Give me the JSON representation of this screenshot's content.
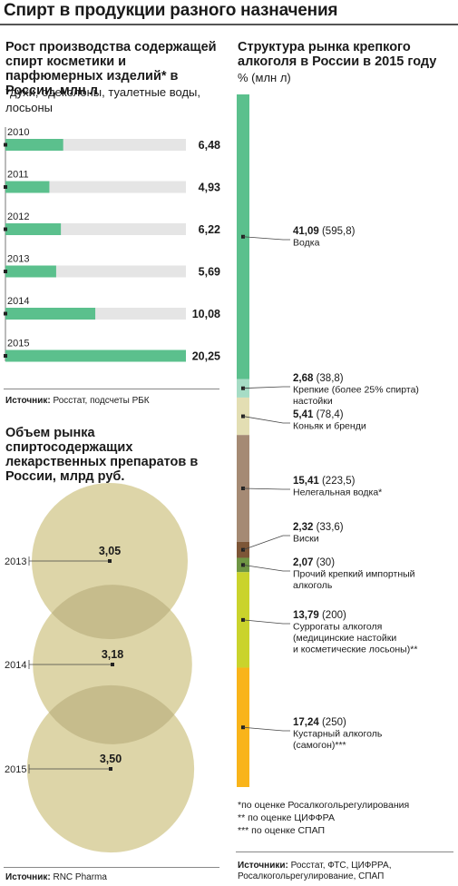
{
  "title": "Спирт в продукции разного назначения",
  "cosmetics": {
    "heading": "Рост производства содержащей спирт косметики и парфюмерных изделий* в России, млн л",
    "footnote": "*духи, одеколоны, туалетные воды, лосьоны",
    "source_label": "Источник:",
    "source_text": "Росстат, подсчеты РБК"
  },
  "medicines": {
    "heading": "Объем рынка спиртосодержащих лекарственных препаратов в России, млрд руб.",
    "source_label": "Источник:",
    "source_text": "RNC Pharma"
  },
  "market": {
    "heading": "Структура рынка крепкого алкоголя в России в 2015 году",
    "unit": "% (млн л)",
    "notes": [
      "*по оценке Росалкогольрегулирования",
      "** по оценке ЦИФФРА",
      "*** по оценке СПАП"
    ],
    "source_label": "Источники:",
    "source_text": "Росстат, ФТС, ЦИФРРА,",
    "source_text2": "Росалкогольрегулирование, СПАП"
  },
  "chart_data": [
    {
      "type": "bar",
      "title": "Рост производства содержащей спирт косметики и парфюмерных изделий* в России, млн л",
      "categories": [
        "2010",
        "2011",
        "2012",
        "2013",
        "2014",
        "2015"
      ],
      "values": [
        6.48,
        4.93,
        6.22,
        5.69,
        10.08,
        20.25
      ],
      "value_labels": [
        "6,48",
        "4,93",
        "6,22",
        "5,69",
        "10,08",
        "20,25"
      ],
      "ylim": [
        0,
        20.25
      ],
      "colors": {
        "bar": "#5bc08d",
        "track": "#e5e5e5"
      }
    },
    {
      "type": "bubble",
      "title": "Объем рынка спиртосодержащих лекарственных препаратов в России, млрд руб.",
      "categories": [
        "2013",
        "2014",
        "2015"
      ],
      "values": [
        3.05,
        3.18,
        3.5
      ],
      "value_labels": [
        "3,05",
        "3,18",
        "3,50"
      ],
      "colors": {
        "bubble": "#ddd5a8",
        "overlap": "#c6bc8c"
      }
    },
    {
      "type": "stacked_bar",
      "title": "Структура рынка крепкого алкоголя в России в 2015 году",
      "unit": "% (млн л)",
      "segments": [
        {
          "pct": 41.09,
          "volume": 595.8,
          "pct_label": "41,09",
          "volume_label": "(595,8)",
          "label": [
            "Водка"
          ],
          "color": "#5bc08d"
        },
        {
          "pct": 2.68,
          "volume": 38.8,
          "pct_label": "2,68",
          "volume_label": "(38,8)",
          "label": [
            "Крепкие (более 25% спирта)",
            "настойки"
          ],
          "color": "#a6dcc5"
        },
        {
          "pct": 5.41,
          "volume": 78.4,
          "pct_label": "5,41",
          "volume_label": "(78,4)",
          "label": [
            "Коньяк и бренди"
          ],
          "color": "#e3deb3"
        },
        {
          "pct": 15.41,
          "volume": 223.5,
          "pct_label": "15,41",
          "volume_label": "(223,5)",
          "label": [
            "Нелегальная водка*"
          ],
          "color": "#a58a74"
        },
        {
          "pct": 2.32,
          "volume": 33.6,
          "pct_label": "2,32",
          "volume_label": "(33,6)",
          "label": [
            "Виски"
          ],
          "color": "#7d5637"
        },
        {
          "pct": 2.07,
          "volume": 30,
          "pct_label": "2,07",
          "volume_label": "(30)",
          "label": [
            "Прочий крепкий импортный",
            "алкоголь"
          ],
          "color": "#6f9644"
        },
        {
          "pct": 13.79,
          "volume": 200,
          "pct_label": "13,79",
          "volume_label": "(200)",
          "label": [
            "Суррогаты алкоголя",
            "(медицинские настойки",
            "и косметические лосьоны)**"
          ],
          "color": "#cad32c"
        },
        {
          "pct": 17.24,
          "volume": 250,
          "pct_label": "17,24",
          "volume_label": "(250)",
          "label": [
            "Кустарный алкоголь",
            "(самогон)***"
          ],
          "color": "#f9b41a"
        }
      ]
    }
  ]
}
